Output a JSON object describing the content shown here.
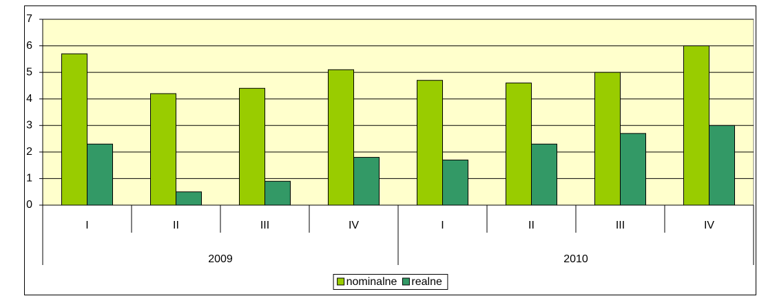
{
  "chart_data": {
    "type": "bar",
    "categories": [
      "I",
      "II",
      "III",
      "IV",
      "I",
      "II",
      "III",
      "IV"
    ],
    "groups": [
      "2009",
      "2010"
    ],
    "series": [
      {
        "name": "nominalne",
        "color": "#99cc00",
        "values": [
          5.7,
          4.2,
          4.4,
          5.1,
          4.7,
          4.6,
          5.0,
          6.0
        ]
      },
      {
        "name": "realne",
        "color": "#339966",
        "values": [
          2.3,
          0.5,
          0.9,
          1.8,
          1.7,
          2.3,
          2.7,
          3.0
        ]
      }
    ],
    "ylim": [
      0,
      7
    ],
    "yticks": [
      0,
      1,
      2,
      3,
      4,
      5,
      6,
      7
    ],
    "grid": true,
    "legend": "bottom"
  }
}
